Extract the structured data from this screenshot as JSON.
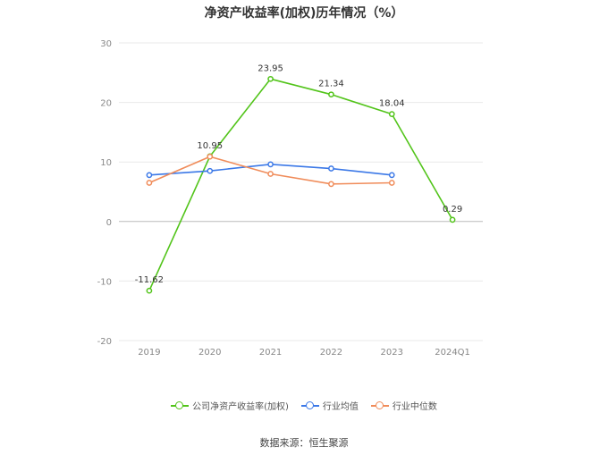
{
  "title": "净资产收益率(加权)历年情况（%）",
  "source": "数据来源：恒生聚源",
  "chart_data": {
    "type": "line",
    "categories": [
      "2019",
      "2020",
      "2021",
      "2022",
      "2023",
      "2024Q1"
    ],
    "ylim": [
      -20,
      30
    ],
    "yticks": [
      -20,
      -10,
      0,
      10,
      20,
      30
    ],
    "grid": true,
    "legend_position": "bottom",
    "series": [
      {
        "name": "公司净资产收益率(加权)",
        "color": "#52c41a",
        "values": [
          -11.62,
          10.95,
          23.95,
          21.34,
          18.04,
          0.29
        ],
        "labels": [
          "-11.62",
          "10.95",
          "23.95",
          "21.34",
          "18.04",
          "0.29"
        ]
      },
      {
        "name": "行业均值",
        "color": "#3b78e7",
        "values": [
          7.8,
          8.5,
          9.6,
          8.9,
          7.8,
          null
        ]
      },
      {
        "name": "行业中位数",
        "color": "#f08c5a",
        "values": [
          6.5,
          10.9,
          8.0,
          6.3,
          6.5,
          null
        ]
      }
    ]
  }
}
